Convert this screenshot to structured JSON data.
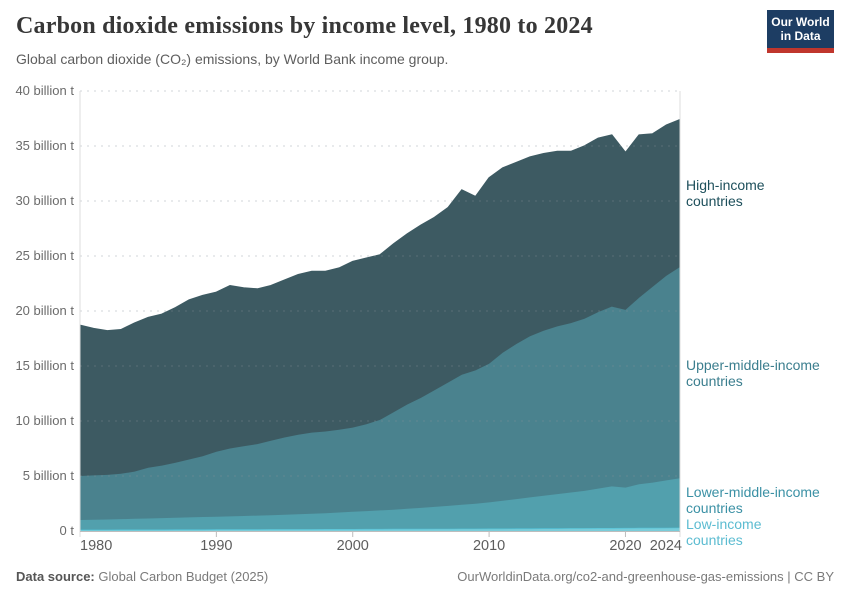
{
  "header": {
    "title": "Carbon dioxide emissions by income level, 1980 to 2024",
    "subtitle": "Global carbon dioxide (CO₂) emissions, by World Bank income group.",
    "logo": {
      "line1": "Our World",
      "line2": "in Data",
      "bg_color": "#1d3d63",
      "accent_color": "#c0362d"
    }
  },
  "chart_data": {
    "type": "area",
    "stacked": true,
    "title": "Carbon dioxide emissions by income level, 1980 to 2024",
    "xlabel": "",
    "ylabel": "",
    "xlim": [
      1980,
      2024
    ],
    "ylim": [
      0,
      40
    ],
    "grid": "dashed-horizontal",
    "legend_position": "right-edge-labels",
    "unit": "billion tonnes CO2",
    "x": [
      1980,
      1981,
      1982,
      1983,
      1984,
      1985,
      1986,
      1987,
      1988,
      1989,
      1990,
      1991,
      1992,
      1993,
      1994,
      1995,
      1996,
      1997,
      1998,
      1999,
      2000,
      2001,
      2002,
      2003,
      2004,
      2005,
      2006,
      2007,
      2008,
      2009,
      2010,
      2011,
      2012,
      2013,
      2014,
      2015,
      2016,
      2017,
      2018,
      2019,
      2020,
      2021,
      2022,
      2023,
      2024
    ],
    "stack_order": "bottom to top",
    "series": [
      {
        "name": "Low-income countries",
        "label_lines": [
          "Low-income",
          "countries"
        ],
        "color": "#79ccd9",
        "line_color": "#55c3d8",
        "label_color": "#5cbcd1",
        "values": [
          0.13,
          0.13,
          0.13,
          0.14,
          0.14,
          0.14,
          0.14,
          0.15,
          0.15,
          0.15,
          0.16,
          0.16,
          0.16,
          0.16,
          0.17,
          0.17,
          0.17,
          0.17,
          0.18,
          0.18,
          0.18,
          0.19,
          0.19,
          0.2,
          0.2,
          0.2,
          0.21,
          0.21,
          0.22,
          0.22,
          0.23,
          0.23,
          0.24,
          0.24,
          0.25,
          0.25,
          0.26,
          0.26,
          0.27,
          0.27,
          0.28,
          0.29,
          0.29,
          0.3,
          0.31
        ]
      },
      {
        "name": "Lower-middle-income countries",
        "label_lines": [
          "Lower-middle-income",
          "countries"
        ],
        "color": "#52a0ad",
        "line_color": "#52a0ad",
        "label_color": "#3b91a5",
        "values": [
          0.87,
          0.89,
          0.92,
          0.94,
          0.97,
          1.0,
          1.03,
          1.05,
          1.09,
          1.12,
          1.14,
          1.17,
          1.2,
          1.24,
          1.26,
          1.3,
          1.35,
          1.4,
          1.44,
          1.5,
          1.57,
          1.62,
          1.68,
          1.74,
          1.82,
          1.9,
          1.98,
          2.07,
          2.16,
          2.26,
          2.37,
          2.52,
          2.66,
          2.81,
          2.95,
          3.1,
          3.24,
          3.39,
          3.58,
          3.78,
          3.67,
          3.96,
          4.11,
          4.3,
          4.49
        ]
      },
      {
        "name": "Upper-middle-income countries",
        "label_lines": [
          "Upper-middle-income",
          "countries"
        ],
        "color": "#4a828e",
        "line_color": "#4a828e",
        "label_color": "#3b7e8e",
        "values": [
          4.0,
          4.03,
          4.05,
          4.12,
          4.29,
          4.61,
          4.78,
          5.0,
          5.26,
          5.53,
          5.9,
          6.17,
          6.34,
          6.5,
          6.77,
          7.03,
          7.23,
          7.38,
          7.43,
          7.52,
          7.65,
          7.89,
          8.23,
          8.86,
          9.48,
          10.0,
          10.61,
          11.22,
          11.82,
          12.12,
          12.6,
          13.45,
          14.1,
          14.65,
          15.0,
          15.25,
          15.4,
          15.65,
          16.05,
          16.35,
          16.15,
          16.95,
          17.8,
          18.6,
          19.2
        ]
      },
      {
        "name": "High-income countries",
        "label_lines": [
          "High-income",
          "countries"
        ],
        "color": "#3d5a62",
        "line_color": "#3d5a62",
        "label_color": "#1d4f5b",
        "values": [
          13.7,
          13.35,
          13.1,
          13.1,
          13.5,
          13.65,
          13.75,
          14.1,
          14.5,
          14.6,
          14.5,
          14.8,
          14.4,
          14.1,
          14.1,
          14.3,
          14.55,
          14.65,
          14.55,
          14.7,
          15.1,
          15.1,
          15.0,
          15.3,
          15.5,
          15.7,
          15.7,
          15.9,
          16.8,
          15.8,
          16.9,
          16.8,
          16.5,
          16.3,
          16.1,
          15.9,
          15.6,
          15.7,
          15.8,
          15.6,
          14.3,
          14.8,
          13.9,
          13.7,
          13.4
        ]
      }
    ],
    "yticks": [
      {
        "value": 0,
        "label": "0 t"
      },
      {
        "value": 5,
        "label": "5 billion t"
      },
      {
        "value": 10,
        "label": "10 billion t"
      },
      {
        "value": 15,
        "label": "15 billion t"
      },
      {
        "value": 20,
        "label": "20 billion t"
      },
      {
        "value": 25,
        "label": "25 billion t"
      },
      {
        "value": 30,
        "label": "30 billion t"
      },
      {
        "value": 35,
        "label": "35 billion t"
      },
      {
        "value": 40,
        "label": "40 billion t"
      }
    ],
    "xticks": [
      {
        "year": 1980,
        "label": "1980",
        "align": "start"
      },
      {
        "year": 1990,
        "label": "1990",
        "align": "middle"
      },
      {
        "year": 2000,
        "label": "2000",
        "align": "middle"
      },
      {
        "year": 2010,
        "label": "2010",
        "align": "middle"
      },
      {
        "year": 2020,
        "label": "2020",
        "align": "middle"
      },
      {
        "year": 2024,
        "label": "2024",
        "align": "end"
      }
    ]
  },
  "footer": {
    "datasource_label": "Data source:",
    "datasource_value": "Global Carbon Budget (2025)",
    "license_text": "OurWorldinData.org/co2-and-greenhouse-gas-emissions | CC BY"
  }
}
